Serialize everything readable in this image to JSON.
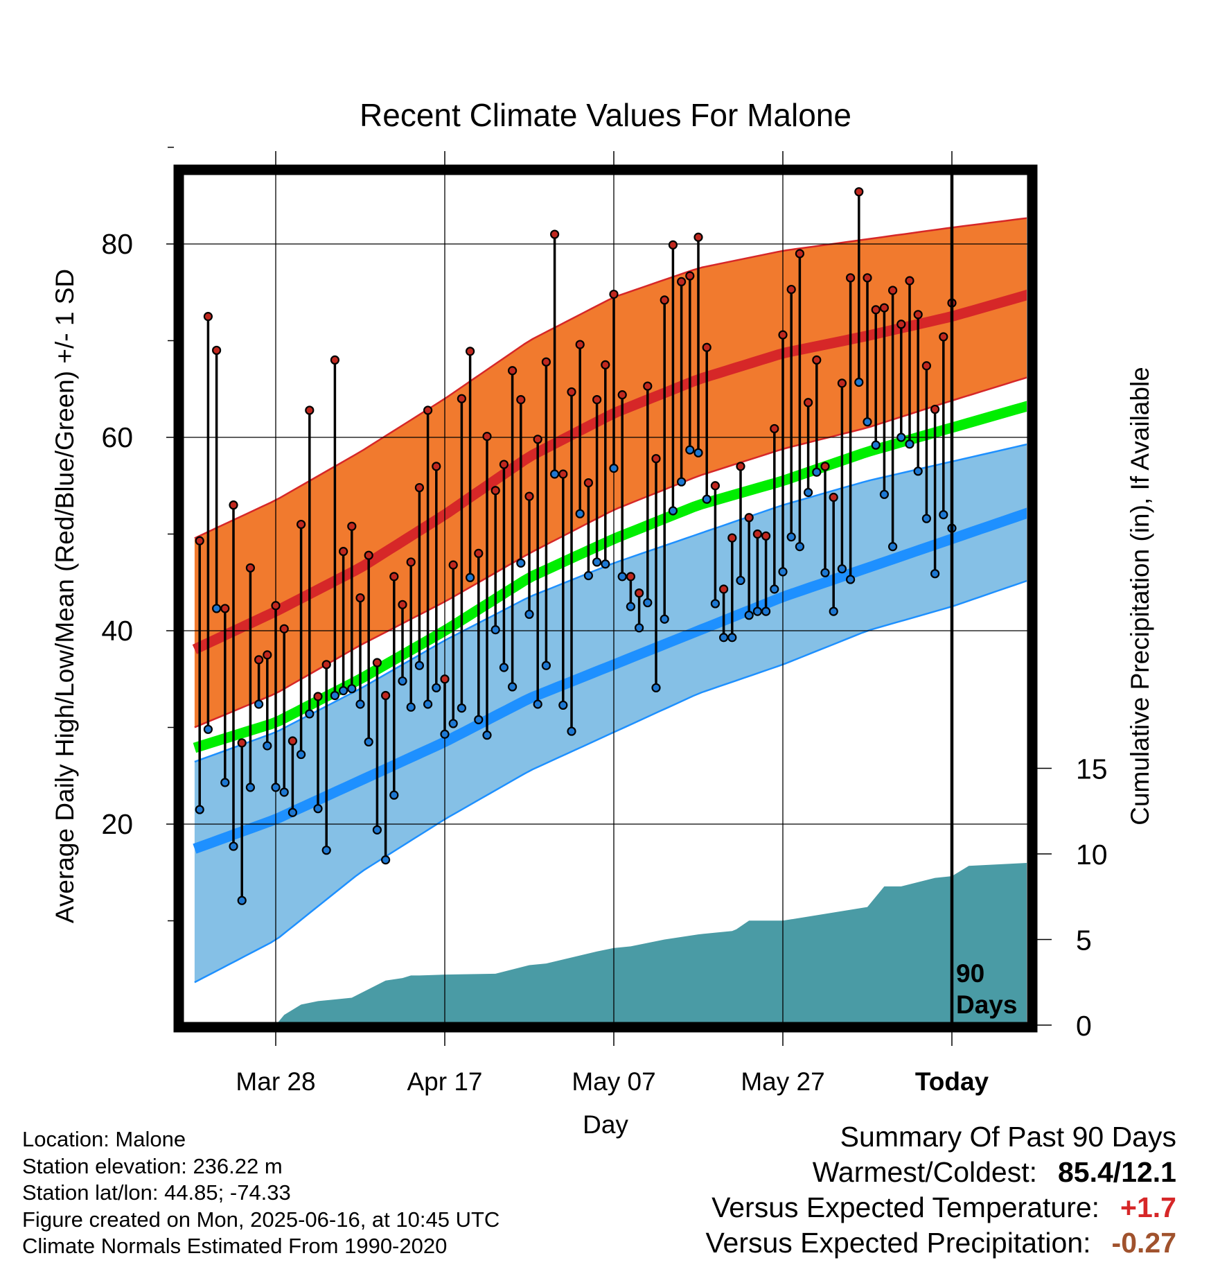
{
  "chart_data": {
    "type": "line",
    "title": "Recent Climate Values For Malone",
    "xlabel": "Day",
    "ylabel": "Average Daily High/Low/Mean (Red/Blue/Green) +/- 1 SD",
    "y2label": "Cumulative Precipitation (in), If Available",
    "ylim": [
      0,
      90
    ],
    "y2lim": [
      0,
      19
    ],
    "yticks": [
      "20",
      "40",
      "60",
      "80"
    ],
    "y2ticks": [
      "0",
      "5",
      "10",
      "15"
    ],
    "xticks": [
      "Mar 28",
      "Apr 17",
      "May 07",
      "May 27",
      "Today"
    ],
    "x_note": "90 Days",
    "colors": {
      "high_band": "#f17a2e",
      "high_band_edge": "#d62728",
      "high_mean": "#d62728",
      "low_band": "#85c0e6",
      "low_band_edge": "#1e90ff",
      "low_mean": "#1e90ff",
      "mean": "#00ee00",
      "precip": "#4a9ba5",
      "high_marker": "#c0281f",
      "low_marker": "#1e78d2",
      "today_line": "#000000"
    },
    "normals": {
      "day": [
        -11,
        0,
        10,
        20,
        30,
        40,
        50,
        60,
        70,
        80,
        90,
        99
      ],
      "high_mean": [
        37.5,
        42,
        46.5,
        52,
        58,
        62.5,
        66,
        68.7,
        70.5,
        72.5,
        75,
        77.2
      ],
      "high_upper": [
        49,
        53.5,
        58.5,
        64,
        70,
        74.5,
        77.5,
        79.3,
        80.5,
        81.7,
        82.8,
        84
      ],
      "high_lower": [
        29.5,
        33.5,
        38.5,
        43,
        48,
        52.5,
        56,
        58.8,
        61,
        63.8,
        66.5,
        69.5
      ],
      "mean": [
        27.5,
        30.5,
        35,
        40,
        45.5,
        49.5,
        53,
        55.5,
        58.5,
        61,
        63.5,
        65.5
      ],
      "low_mean": [
        17,
        20.5,
        24.5,
        28.5,
        33,
        36.5,
        40,
        43.5,
        46.5,
        49.5,
        52.5,
        55
      ],
      "low_upper": [
        26,
        29.5,
        34,
        39,
        43.5,
        47,
        50,
        53,
        55.5,
        57.5,
        59.5,
        61.5
      ],
      "low_lower": [
        3,
        8,
        15,
        20.5,
        25.5,
        29.5,
        33.5,
        36.5,
        40,
        42.5,
        45.5,
        48.5
      ]
    },
    "daily": {
      "high": [
        49.3,
        72.5,
        69,
        42.3,
        53,
        28.4,
        46.5,
        37,
        37.5,
        42.6,
        40.2,
        28.6,
        51,
        62.8,
        33.2,
        36.5,
        68,
        48.2,
        50.8,
        43.4,
        47.8,
        36.7,
        33.3,
        45.6,
        42.7,
        47.1,
        54.8,
        62.8,
        57,
        35,
        46.8,
        64,
        68.9,
        48,
        60.1,
        54.5,
        57.2,
        66.9,
        63.9,
        53.9,
        59.8,
        67.8,
        81,
        56.2,
        64.7,
        69.6,
        55.3,
        63.9,
        67.5,
        74.8,
        64.4,
        45.6,
        43.9,
        65.3,
        57.8,
        74.2,
        79.9,
        76.1,
        76.7,
        80.7,
        69.3,
        55,
        44.3,
        49.6,
        57,
        51.7,
        50,
        49.8,
        60.9,
        70.6,
        75.3,
        79,
        63.6,
        68,
        57,
        53.8,
        65.6,
        76.5,
        85.4,
        76.5,
        73.2,
        73.4,
        75.2,
        71.7,
        76.2,
        72.7,
        67.4,
        62.9,
        70.4,
        73.9
      ],
      "low": [
        21.5,
        29.8,
        42.3,
        24.3,
        17.7,
        12.1,
        23.8,
        32.4,
        28.1,
        23.8,
        23.3,
        21.2,
        27.2,
        31.4,
        21.6,
        17.3,
        33.3,
        33.8,
        34,
        32.4,
        28.5,
        19.4,
        16.3,
        23,
        34.8,
        32.1,
        36.4,
        32.4,
        34.1,
        29.3,
        30.4,
        32,
        45.5,
        30.8,
        29.2,
        40.1,
        36.2,
        34.2,
        47,
        41.7,
        32.4,
        36.4,
        56.2,
        32.3,
        29.6,
        52.1,
        45.7,
        47.1,
        46.9,
        56.8,
        45.6,
        42.5,
        40.3,
        42.9,
        34.1,
        41.2,
        52.4,
        55.4,
        58.7,
        58.4,
        53.6,
        42.8,
        39.3,
        39.3,
        45.2,
        41.6,
        42,
        42,
        44.3,
        46.1,
        49.7,
        48.7,
        54.3,
        56.4,
        46,
        42,
        46.4,
        45.3,
        65.7,
        61.6,
        59.2,
        54.1,
        48.7,
        60,
        59.3,
        56.5,
        51.6,
        45.9,
        52,
        50.6
      ]
    },
    "precip": {
      "day": [
        0,
        1,
        3,
        5,
        7,
        9,
        13,
        15,
        16,
        17,
        20,
        26,
        30,
        32,
        38,
        40,
        42,
        46,
        50,
        52,
        54,
        54.5,
        56,
        60,
        70,
        72,
        74,
        78,
        80,
        82,
        90,
        99
      ],
      "cumulative": [
        0,
        0.6,
        1.2,
        1.4,
        1.5,
        1.6,
        2.6,
        2.75,
        2.9,
        2.9,
        2.95,
        3.0,
        3.5,
        3.6,
        4.3,
        4.5,
        4.6,
        5.0,
        5.3,
        5.4,
        5.5,
        5.6,
        6.1,
        6.1,
        6.9,
        8.1,
        8.1,
        8.6,
        8.7,
        9.3,
        9.5,
        9.5
      ]
    }
  },
  "footer": {
    "location": "Location: Malone",
    "elevation": "Station elevation: 236.22 m",
    "latlon": "Station lat/lon: 44.85; -74.33",
    "created": "Figure created on Mon, 2025-06-16, at 10:45 UTC",
    "normals": "Climate Normals Estimated From 1990-2020"
  },
  "summary": {
    "title": "Summary Of Past 90 Days",
    "warm_label": "Warmest/Coldest:",
    "warm_value": "85.4/12.1",
    "temp_label": "Versus Expected Temperature:",
    "temp_value": "+1.7",
    "precip_label": "Versus Expected Precipitation:",
    "precip_value": "-0.27"
  }
}
